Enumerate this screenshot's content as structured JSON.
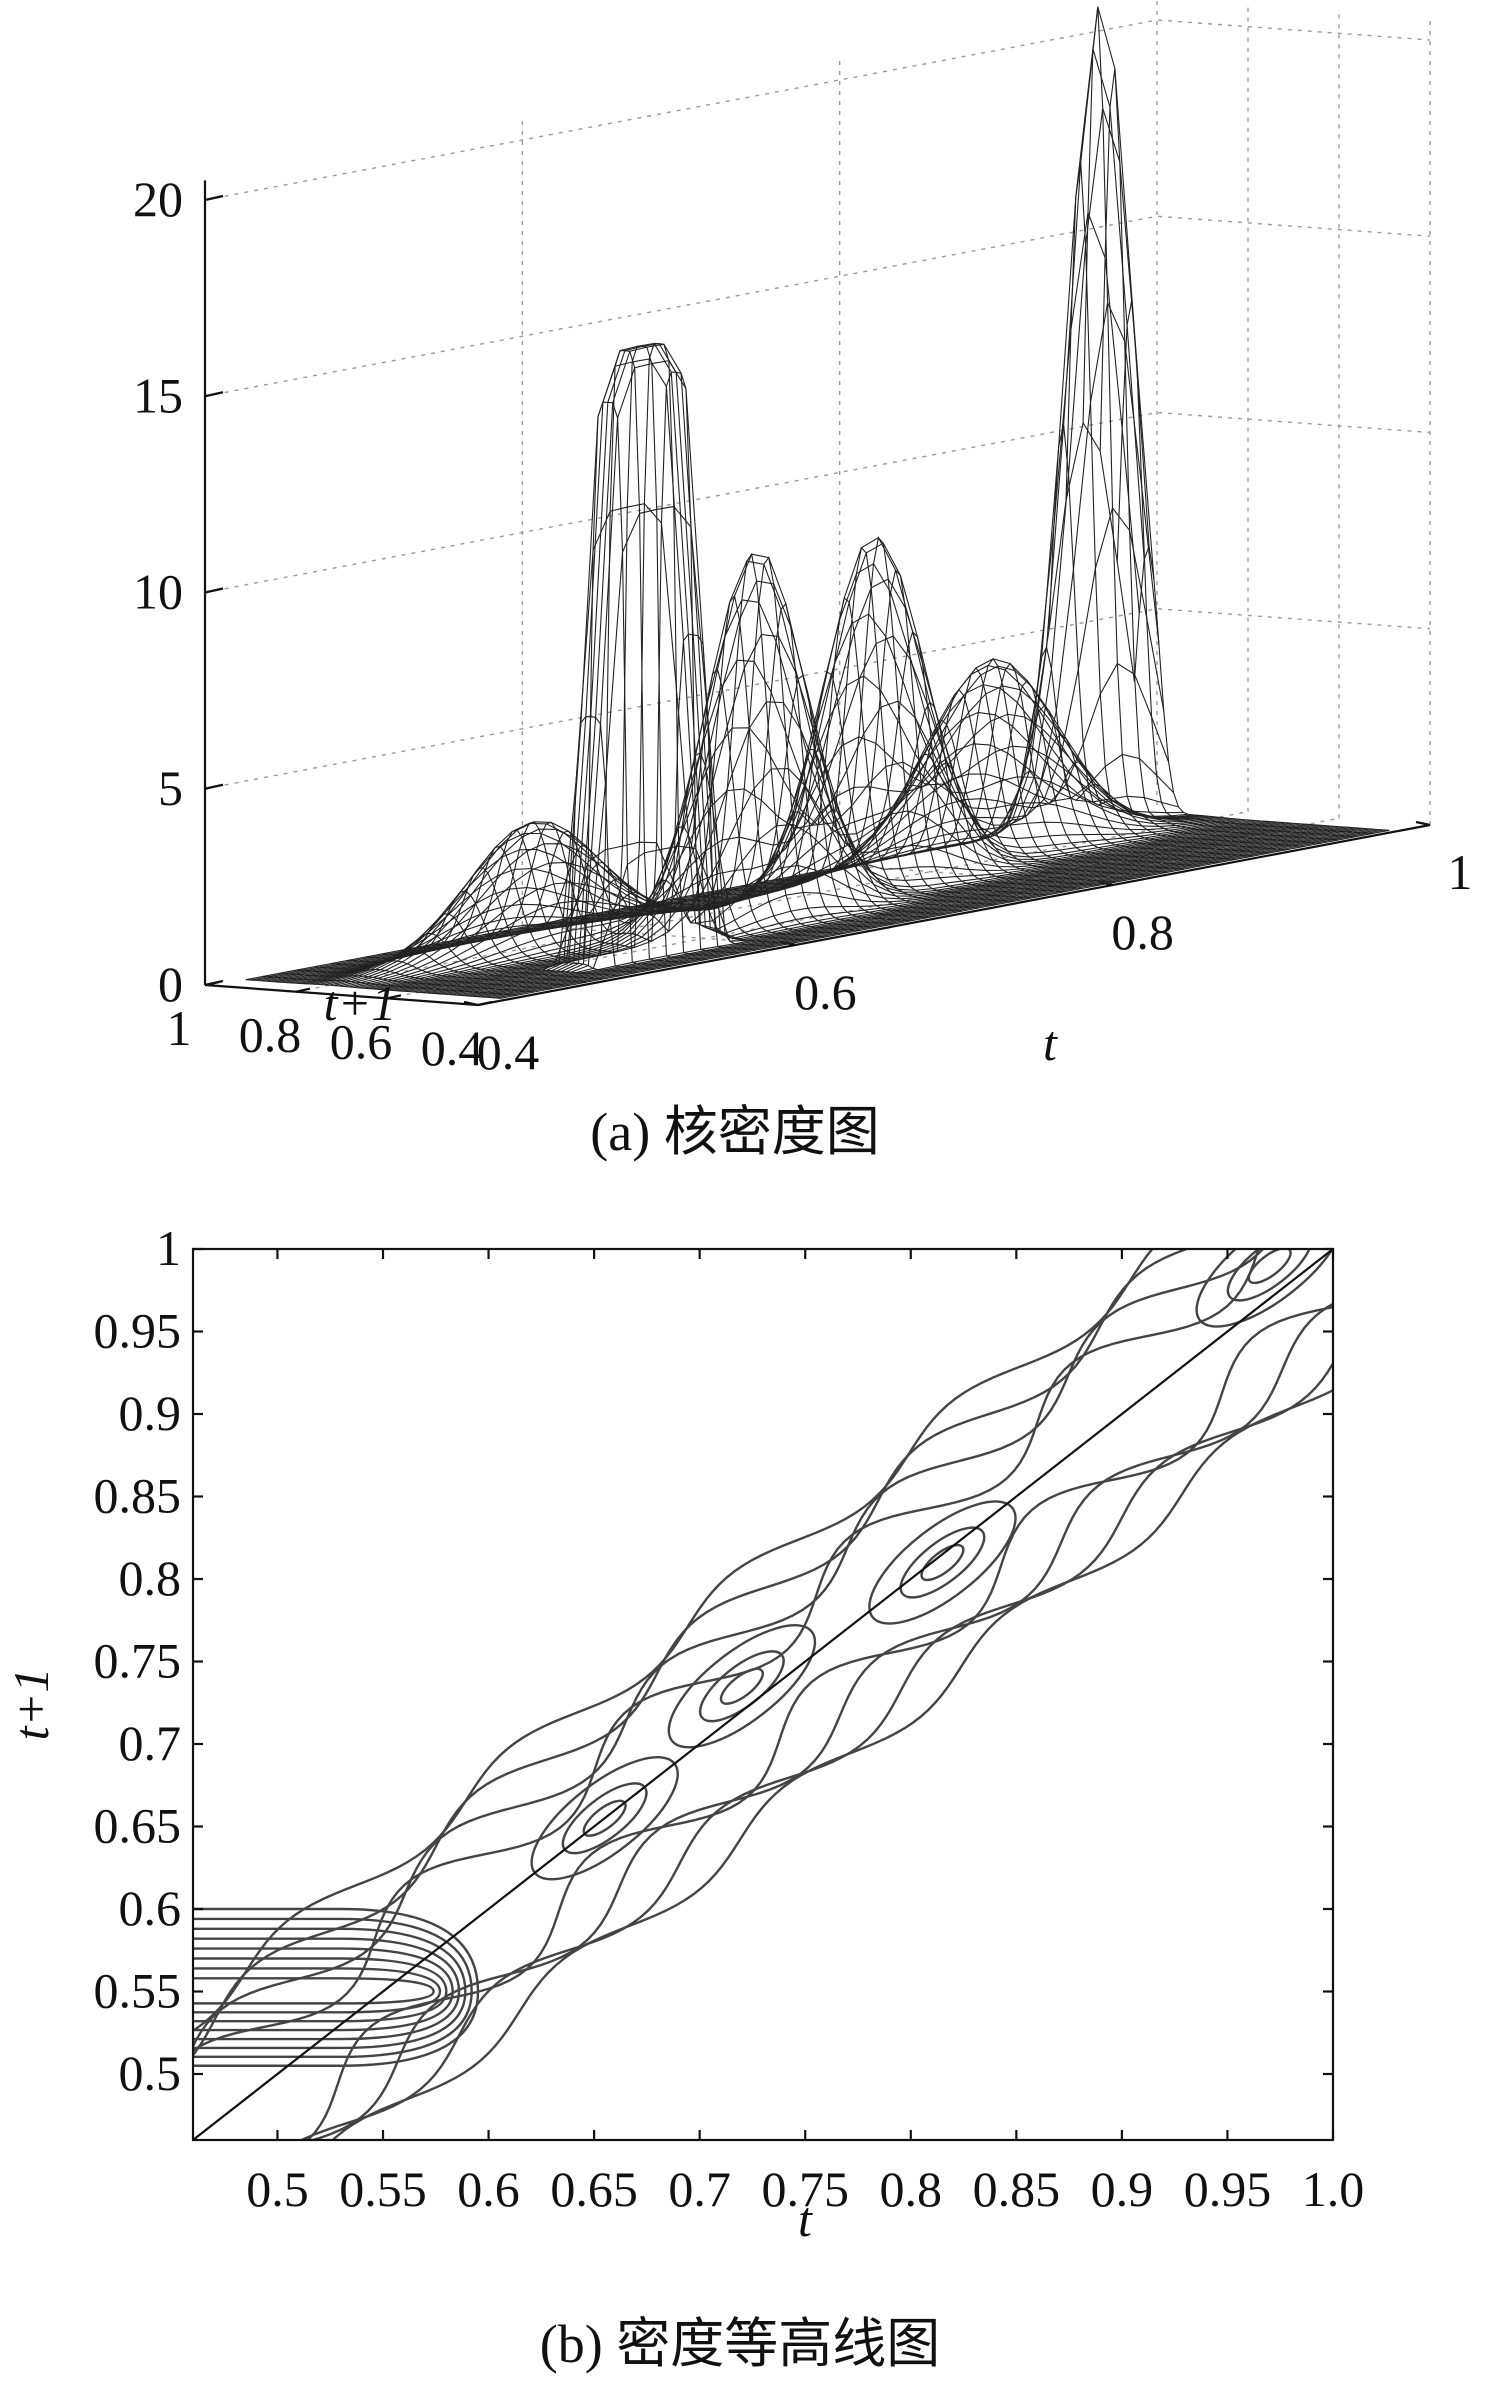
{
  "chart_data": [
    {
      "type": "surface",
      "caption": "(a) 核密度图",
      "x_label": "t",
      "y_label": "t+1",
      "x_ticks": [
        "0.4",
        "0.6",
        "0.8",
        "1"
      ],
      "y_ticks": [
        "0.4",
        "0.6",
        "0.8",
        "1"
      ],
      "z_ticks": [
        "0",
        "5",
        "10",
        "15",
        "20"
      ],
      "xlim": [
        0.4,
        1.0
      ],
      "ylim": [
        0.4,
        1.0
      ],
      "zlim": [
        0,
        20
      ],
      "grid": true,
      "peaks": [
        {
          "t": 0.55,
          "t1": 0.55,
          "density": 14,
          "shape": "flat-top ridge"
        },
        {
          "t": 0.65,
          "t1": 0.65,
          "density": 10
        },
        {
          "t": 0.75,
          "t1": 0.75,
          "density": 10
        },
        {
          "t": 0.95,
          "t1": 0.95,
          "density": 21
        },
        {
          "t": 0.5,
          "t1": 0.75,
          "density": 3
        }
      ]
    },
    {
      "type": "contour",
      "caption": "(b) 密度等高线图",
      "x_label": "t",
      "y_label": "t+1",
      "x_ticks": [
        "0.5",
        "0.55",
        "0.6",
        "0.65",
        "0.7",
        "0.75",
        "0.8",
        "0.85",
        "0.9",
        "0.95",
        "1.0"
      ],
      "y_ticks": [
        "0.5",
        "0.55",
        "0.6",
        "0.65",
        "0.7",
        "0.75",
        "0.8",
        "0.85",
        "0.9",
        "0.95",
        "1"
      ],
      "xlim": [
        0.46,
        1.0
      ],
      "ylim": [
        0.46,
        1.0
      ],
      "diagonal_line": {
        "from": [
          0.46,
          0.46
        ],
        "to": [
          1.0,
          1.0
        ]
      },
      "density_centers": [
        {
          "t": 0.55,
          "t1": 0.55
        },
        {
          "t": 0.655,
          "t1": 0.655
        },
        {
          "t": 0.72,
          "t1": 0.735
        },
        {
          "t": 0.815,
          "t1": 0.81
        },
        {
          "t": 0.97,
          "t1": 0.99
        }
      ]
    }
  ]
}
